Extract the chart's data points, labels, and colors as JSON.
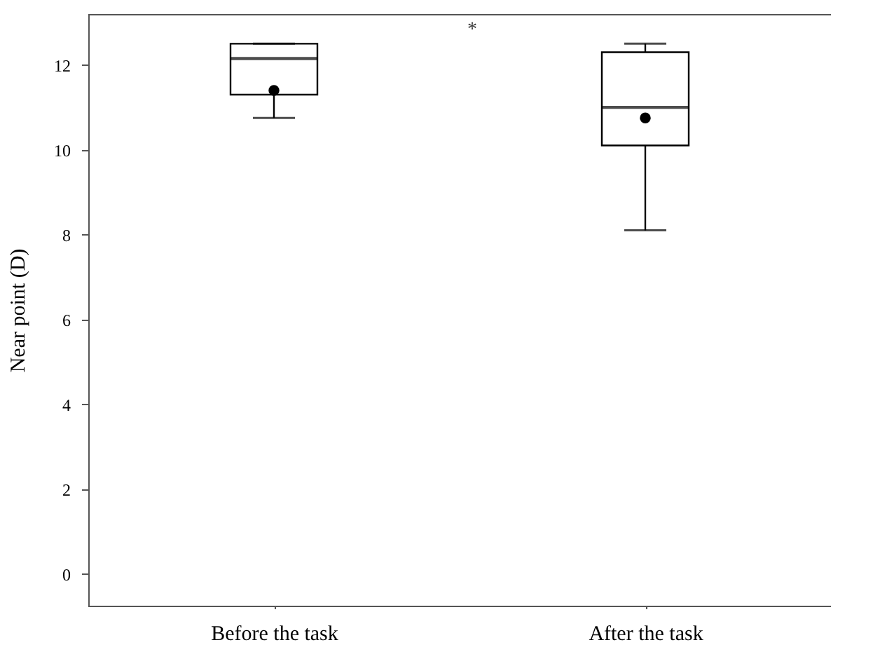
{
  "chart_data": {
    "type": "box",
    "ylabel": "Near point (D)",
    "categories": [
      "Before the task",
      "After the task"
    ],
    "boxes": [
      {
        "low": 10.75,
        "q1": 11.3,
        "median": 12.15,
        "q3": 12.5,
        "high": 12.5,
        "mean": 11.4
      },
      {
        "low": 8.1,
        "q1": 10.1,
        "median": 11.0,
        "q3": 12.3,
        "high": 12.5,
        "mean": 10.75
      }
    ],
    "color": "#000000",
    "ylim": [
      -0.75,
      13.2
    ],
    "yticks": [
      0,
      2,
      4,
      6,
      8,
      10,
      12
    ],
    "grid": false,
    "annotations": [
      "*"
    ]
  }
}
